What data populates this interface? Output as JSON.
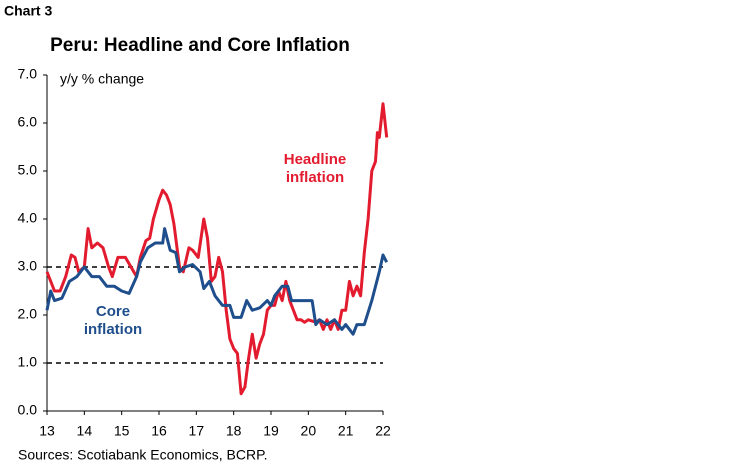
{
  "chart_data": {
    "type": "line",
    "label": "Chart 3",
    "title": "Peru: Headline and Core Inflation",
    "y_label": "y/y % change",
    "source": "Sources: Scotiabank Economics, BCRP.",
    "xlim": [
      2013,
      2022
    ],
    "xticks": [
      {
        "value": 2013,
        "label": "13"
      },
      {
        "value": 2014,
        "label": "14"
      },
      {
        "value": 2015,
        "label": "15"
      },
      {
        "value": 2016,
        "label": "16"
      },
      {
        "value": 2017,
        "label": "17"
      },
      {
        "value": 2018,
        "label": "18"
      },
      {
        "value": 2019,
        "label": "19"
      },
      {
        "value": 2020,
        "label": "20"
      },
      {
        "value": 2021,
        "label": "21"
      },
      {
        "value": 2022,
        "label": "22"
      }
    ],
    "ylim": [
      0,
      7
    ],
    "yticks": [
      {
        "value": 0,
        "label": "0.0"
      },
      {
        "value": 1,
        "label": "1.0"
      },
      {
        "value": 2,
        "label": "2.0"
      },
      {
        "value": 3,
        "label": "3.0"
      },
      {
        "value": 4,
        "label": "4.0"
      },
      {
        "value": 5,
        "label": "5.0"
      },
      {
        "value": 6,
        "label": "6.0"
      },
      {
        "value": 7,
        "label": "7.0"
      }
    ],
    "reference_lines": [
      1,
      3
    ],
    "grid": false,
    "series": [
      {
        "label": [
          "Headline",
          "inflation"
        ],
        "color": "#e31b2f",
        "x": [
          2013.0,
          2013.2,
          2013.35,
          2013.5,
          2013.65,
          2013.75,
          2013.85,
          2014.0,
          2014.1,
          2014.2,
          2014.35,
          2014.5,
          2014.65,
          2014.75,
          2014.9,
          2015.1,
          2015.25,
          2015.4,
          2015.5,
          2015.65,
          2015.75,
          2015.85,
          2016.0,
          2016.1,
          2016.2,
          2016.3,
          2016.4,
          2016.55,
          2016.65,
          2016.8,
          2016.9,
          2017.05,
          2017.2,
          2017.3,
          2017.4,
          2017.5,
          2017.6,
          2017.7,
          2017.8,
          2017.9,
          2018.0,
          2018.1,
          2018.2,
          2018.3,
          2018.4,
          2018.5,
          2018.6,
          2018.7,
          2018.8,
          2018.9,
          2019.0,
          2019.1,
          2019.2,
          2019.3,
          2019.4,
          2019.5,
          2019.6,
          2019.7,
          2019.8,
          2019.9,
          2020.0,
          2020.2,
          2020.3,
          2020.4,
          2020.5,
          2020.6,
          2020.7,
          2020.8,
          2020.9,
          2021.0,
          2021.1,
          2021.2,
          2021.3,
          2021.4,
          2021.5,
          2021.6,
          2021.7,
          2021.8,
          2021.85,
          2021.9,
          2022.0,
          2022.1
        ],
        "values": [
          2.9,
          2.5,
          2.5,
          2.8,
          3.25,
          3.2,
          2.9,
          3.0,
          3.8,
          3.4,
          3.5,
          3.4,
          3.0,
          2.8,
          3.2,
          3.2,
          3.0,
          2.8,
          3.2,
          3.55,
          3.6,
          4.0,
          4.4,
          4.6,
          4.5,
          4.3,
          3.9,
          3.0,
          2.9,
          3.4,
          3.35,
          3.2,
          4.0,
          3.6,
          2.7,
          2.8,
          3.2,
          2.9,
          2.1,
          1.5,
          1.3,
          1.2,
          0.36,
          0.5,
          1.1,
          1.6,
          1.1,
          1.4,
          1.6,
          2.1,
          2.2,
          2.2,
          2.5,
          2.3,
          2.7,
          2.3,
          2.1,
          1.9,
          1.9,
          1.85,
          1.9,
          1.85,
          1.9,
          1.7,
          1.9,
          1.7,
          1.9,
          1.7,
          2.1,
          2.1,
          2.7,
          2.4,
          2.6,
          2.4,
          3.3,
          4.0,
          5.0,
          5.2,
          5.8,
          5.7,
          6.4,
          5.7
        ]
      },
      {
        "label": [
          "Core",
          "inflation"
        ],
        "color": "#1f4e8c",
        "x": [
          2013.0,
          2013.1,
          2013.2,
          2013.4,
          2013.6,
          2013.8,
          2014.0,
          2014.2,
          2014.4,
          2014.6,
          2014.8,
          2015.0,
          2015.2,
          2015.4,
          2015.5,
          2015.7,
          2015.9,
          2016.1,
          2016.15,
          2016.3,
          2016.45,
          2016.55,
          2016.7,
          2016.9,
          2017.1,
          2017.2,
          2017.35,
          2017.5,
          2017.7,
          2017.9,
          2018.0,
          2018.2,
          2018.35,
          2018.5,
          2018.7,
          2018.9,
          2019.0,
          2019.1,
          2019.3,
          2019.45,
          2019.55,
          2019.8,
          2020.0,
          2020.1,
          2020.2,
          2020.3,
          2020.5,
          2020.7,
          2020.9,
          2021.0,
          2021.2,
          2021.3,
          2021.5,
          2021.7,
          2021.9,
          2022.0,
          2022.1
        ],
        "values": [
          2.1,
          2.5,
          2.3,
          2.35,
          2.7,
          2.8,
          3.0,
          2.8,
          2.8,
          2.6,
          2.6,
          2.5,
          2.45,
          2.8,
          3.1,
          3.4,
          3.5,
          3.5,
          3.8,
          3.35,
          3.3,
          2.9,
          3.0,
          3.05,
          2.9,
          2.55,
          2.7,
          2.4,
          2.2,
          2.2,
          1.95,
          1.95,
          2.3,
          2.1,
          2.15,
          2.3,
          2.2,
          2.4,
          2.6,
          2.6,
          2.3,
          2.3,
          2.3,
          2.3,
          1.8,
          1.9,
          1.8,
          1.9,
          1.7,
          1.8,
          1.6,
          1.8,
          1.8,
          2.3,
          2.9,
          3.25,
          3.1
        ]
      }
    ]
  }
}
